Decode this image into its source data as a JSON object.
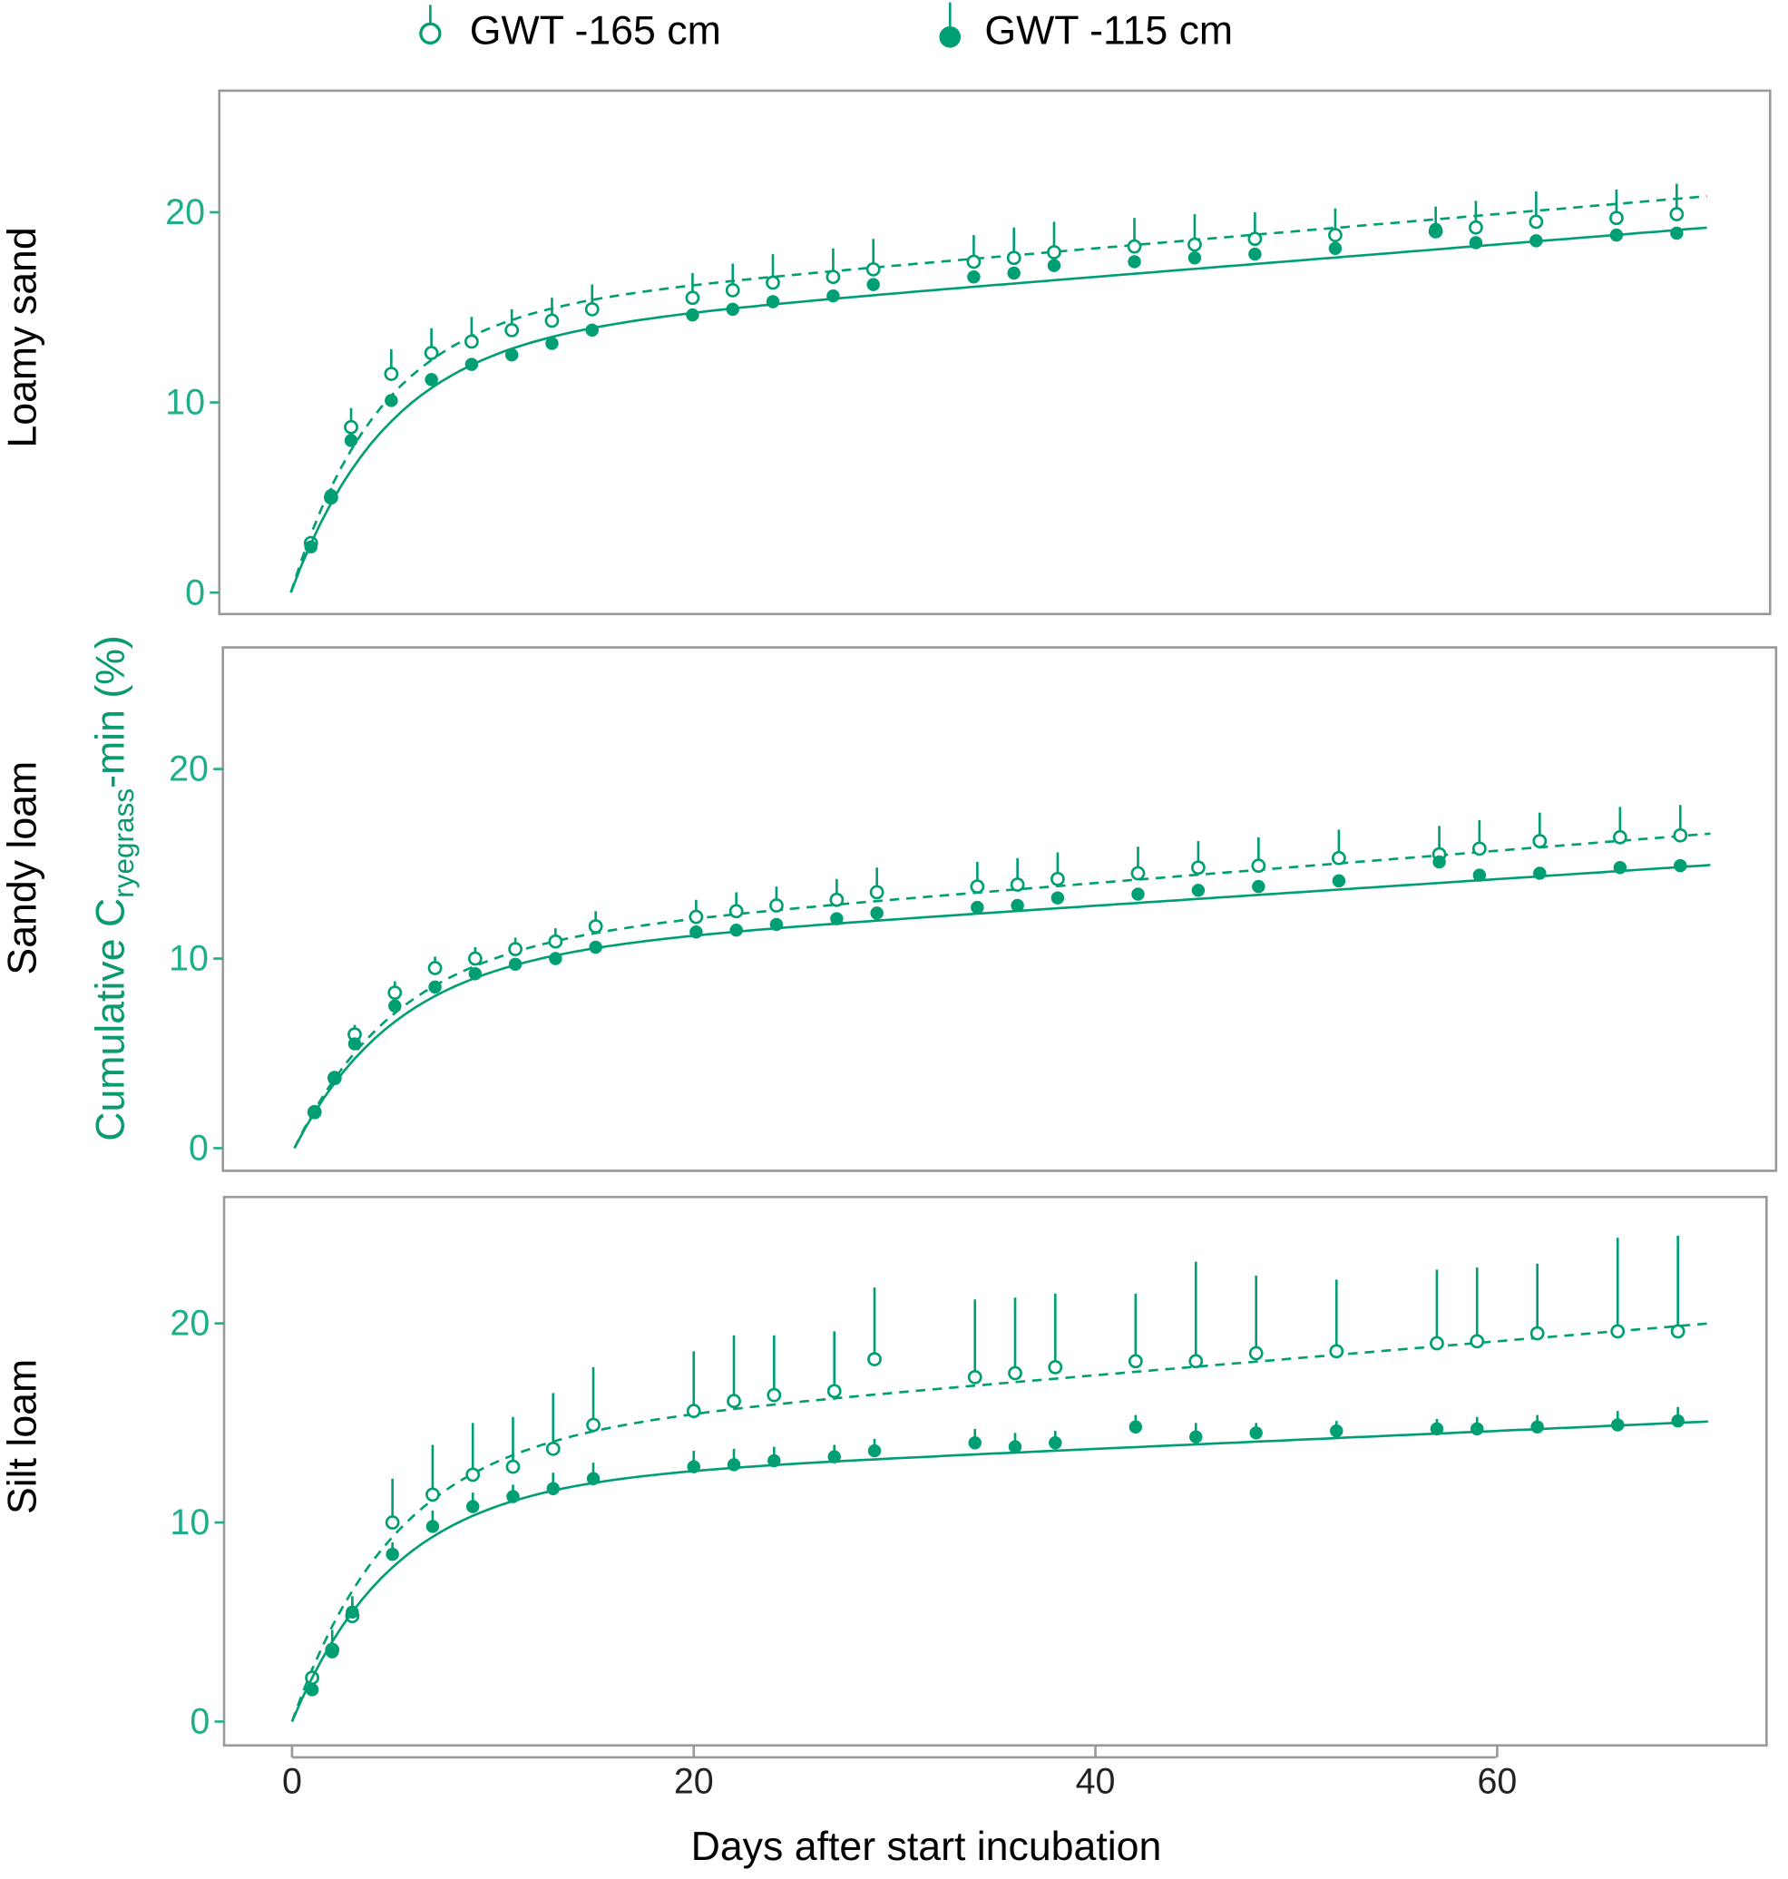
{
  "colors": {
    "series": "#009E73",
    "tick": "#1fae8a",
    "frame": "#888888"
  },
  "chart_data": {
    "type": "scatter",
    "title": "",
    "xlabel": "Days after start incubation",
    "ylabel": {
      "main": "Cumulative C",
      "subscript": "ryegrass",
      "suffix": "-min (%)"
    },
    "xlim": [
      -3.5,
      73
    ],
    "ylim": [
      -1,
      26
    ],
    "xticks": [
      "0",
      "20",
      "40",
      "60"
    ],
    "yticks": [
      "0",
      "10",
      "20"
    ],
    "legend": {
      "placement": "top",
      "entries": [
        {
          "label": "GWT -165 cm",
          "marker": "open-circle",
          "line": "dashed"
        },
        {
          "label": "GWT -115 cm",
          "marker": "filled-circle",
          "line": "solid"
        }
      ]
    },
    "x": [
      1,
      2,
      3,
      5,
      7,
      9,
      11,
      13,
      15,
      20,
      22,
      24,
      27,
      29,
      34,
      36,
      38,
      42,
      45,
      48,
      52,
      57,
      59,
      62,
      66,
      69
    ],
    "panels": [
      {
        "label": "Loamy sand",
        "series": [
          {
            "name": "GWT -165 cm",
            "values": [
              2.6,
              5.0,
              8.7,
              11.5,
              12.6,
              13.2,
              13.8,
              14.3,
              14.9,
              15.5,
              15.9,
              16.3,
              16.6,
              17.0,
              17.4,
              17.6,
              17.9,
              18.2,
              18.3,
              18.6,
              18.8,
              19.0,
              19.2,
              19.5,
              19.7,
              19.9
            ],
            "error": [
              0.3,
              0.5,
              1.0,
              1.3,
              1.3,
              1.3,
              1.1,
              1.2,
              1.3,
              1.3,
              1.4,
              1.5,
              1.5,
              1.6,
              1.4,
              1.6,
              1.6,
              1.5,
              1.6,
              1.4,
              1.4,
              1.3,
              1.4,
              1.6,
              1.5,
              1.6
            ],
            "fit": {
              "a": 14.5,
              "k": 0.23,
              "c": 0.09
            }
          },
          {
            "name": "GWT -115 cm",
            "values": [
              2.4,
              5.1,
              8.0,
              10.1,
              11.2,
              12.0,
              12.5,
              13.1,
              13.8,
              14.6,
              14.9,
              15.3,
              15.6,
              16.2,
              16.6,
              16.8,
              17.2,
              17.4,
              17.6,
              17.8,
              18.1,
              19.1,
              18.4,
              18.5,
              18.8,
              18.9
            ],
            "error": [
              0.2,
              0.2,
              0.3,
              0.3,
              0.3,
              0.3,
              0.3,
              0.3,
              0.3,
              0.3,
              0.3,
              0.3,
              0.3,
              0.3,
              0.3,
              0.3,
              0.3,
              0.3,
              0.3,
              0.3,
              0.3,
              0.3,
              0.3,
              0.3,
              0.3,
              0.3
            ],
            "fit": {
              "a": 13.2,
              "k": 0.21,
              "c": 0.085
            }
          }
        ]
      },
      {
        "label": "Sandy loam",
        "series": [
          {
            "name": "GWT -165 cm",
            "values": [
              1.9,
              3.7,
              6.0,
              8.2,
              9.5,
              10.0,
              10.5,
              10.9,
              11.7,
              12.2,
              12.5,
              12.8,
              13.1,
              13.5,
              13.8,
              13.9,
              14.2,
              14.5,
              14.8,
              14.9,
              15.3,
              15.5,
              15.8,
              16.2,
              16.4,
              16.5
            ],
            "error": [
              0.2,
              0.3,
              0.5,
              0.6,
              0.6,
              0.6,
              0.6,
              0.7,
              0.8,
              0.9,
              1.0,
              1.0,
              1.1,
              1.3,
              1.3,
              1.4,
              1.4,
              1.4,
              1.4,
              1.5,
              1.5,
              1.5,
              1.5,
              1.5,
              1.6,
              1.6
            ],
            "fit": {
              "a": 10.6,
              "k": 0.2,
              "c": 0.085
            }
          },
          {
            "name": "GWT -115 cm",
            "values": [
              1.9,
              3.7,
              5.5,
              7.5,
              8.5,
              9.2,
              9.7,
              10.0,
              10.6,
              11.4,
              11.5,
              11.8,
              12.1,
              12.4,
              12.7,
              12.8,
              13.2,
              13.4,
              13.6,
              13.8,
              14.1,
              15.1,
              14.4,
              14.5,
              14.8,
              14.9
            ],
            "error": [
              0.2,
              0.2,
              0.2,
              0.3,
              0.3,
              0.3,
              0.3,
              0.3,
              0.3,
              0.3,
              0.3,
              0.3,
              0.3,
              0.3,
              0.3,
              0.3,
              0.3,
              0.3,
              0.3,
              0.3,
              0.3,
              0.3,
              0.3,
              0.3,
              0.3,
              0.3
            ],
            "fit": {
              "a": 10.0,
              "k": 0.2,
              "c": 0.07
            }
          }
        ]
      },
      {
        "label": "Silt loam",
        "series": [
          {
            "name": "GWT -165 cm",
            "values": [
              2.2,
              3.6,
              5.3,
              10.0,
              11.4,
              12.4,
              12.8,
              13.7,
              14.9,
              15.6,
              16.1,
              16.4,
              16.6,
              18.2,
              17.3,
              17.5,
              17.8,
              18.1,
              18.1,
              18.5,
              18.6,
              19.0,
              19.1,
              19.5,
              19.6,
              19.6
            ],
            "error": [
              0.5,
              1.0,
              1.0,
              2.2,
              2.5,
              2.6,
              2.5,
              2.8,
              2.9,
              3.0,
              3.3,
              3.0,
              3.0,
              3.6,
              3.9,
              3.8,
              3.7,
              3.4,
              5.0,
              3.9,
              3.6,
              3.7,
              3.7,
              3.5,
              4.7,
              4.8
            ],
            "fit": {
              "a": 14.0,
              "k": 0.2,
              "c": 0.085
            }
          },
          {
            "name": "GWT -115 cm",
            "values": [
              1.6,
              3.5,
              5.5,
              8.4,
              9.8,
              10.8,
              11.3,
              11.7,
              12.2,
              12.8,
              12.9,
              13.1,
              13.3,
              13.6,
              14.0,
              13.8,
              14.0,
              14.8,
              14.3,
              14.5,
              14.6,
              14.7,
              14.7,
              14.8,
              14.9,
              15.1
            ],
            "error": [
              0.3,
              0.3,
              0.5,
              0.6,
              0.8,
              0.7,
              0.6,
              0.8,
              0.8,
              0.8,
              0.8,
              0.7,
              0.6,
              0.6,
              0.7,
              0.7,
              0.6,
              0.6,
              0.7,
              0.5,
              0.5,
              0.5,
              0.6,
              0.6,
              0.7,
              0.7
            ],
            "fit": {
              "a": 11.9,
              "k": 0.2,
              "c": 0.045
            }
          }
        ]
      }
    ]
  }
}
